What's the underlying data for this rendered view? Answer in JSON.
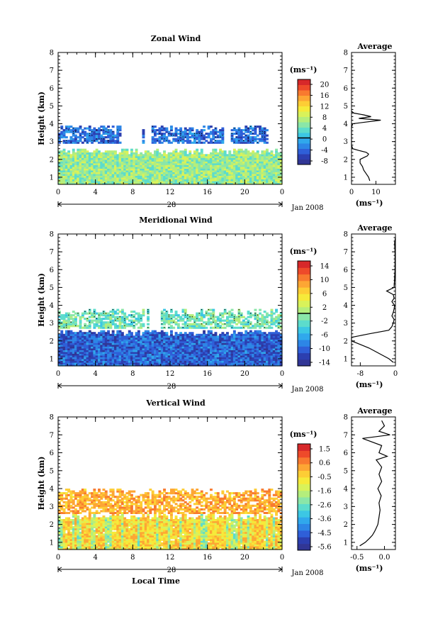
{
  "chart_data": [
    {
      "type": "heatmap",
      "title": "Zonal Wind",
      "xlabel": "",
      "ylabel": "Height (km)",
      "x_ticks": [
        "0",
        "4",
        "8",
        "12",
        "16",
        "20",
        "0"
      ],
      "xlim": [
        0,
        24
      ],
      "y_ticks": [
        "1",
        "2",
        "3",
        "4",
        "5",
        "6",
        "7",
        "8"
      ],
      "ylim": [
        0.6,
        8.0
      ],
      "date_day": "28",
      "date_label": "Jan 2008",
      "colorbar_unit": "(ms⁻¹)",
      "colorbar_ticks": [
        "20",
        "16",
        "12",
        "8",
        "4",
        "0",
        "-4",
        "-8"
      ],
      "colorbar_range": [
        -10,
        22
      ],
      "colorbar_zero_line": 0,
      "upper_layer": {
        "height_km": [
          2.9,
          3.9
        ],
        "time_h": [
          0,
          22.5
        ],
        "typical_value": -4
      },
      "lower_layer": {
        "height_km": [
          0.6,
          2.6
        ],
        "time_h": [
          0,
          24
        ],
        "typical_value": 6
      },
      "profile": {
        "title": "Average",
        "xlabel": "(ms⁻¹)",
        "x_ticks": [
          "0",
          "10"
        ],
        "xlim": [
          0,
          18
        ],
        "height_km": [
          0.8,
          1.0,
          1.2,
          1.4,
          1.6,
          1.8,
          2.0,
          2.1,
          2.2,
          2.3,
          2.4,
          2.5,
          2.6,
          2.8,
          3.0,
          3.2,
          3.4,
          3.6,
          3.8,
          4.0,
          4.2,
          4.3,
          4.4,
          4.5,
          4.6,
          4.7
        ],
        "values": [
          7.5,
          7.0,
          6.0,
          5.0,
          4.5,
          3.5,
          3.5,
          5.0,
          6.5,
          7.0,
          6.0,
          3.0,
          0.5,
          0.0,
          0.0,
          0.0,
          0.0,
          0.0,
          0.0,
          0.5,
          12.0,
          3.0,
          8.0,
          5.0,
          1.0,
          0.0
        ]
      }
    },
    {
      "type": "heatmap",
      "title": "Meridional Wind",
      "xlabel": "",
      "ylabel": "Height (km)",
      "x_ticks": [
        "0",
        "4",
        "8",
        "12",
        "16",
        "20",
        "0"
      ],
      "xlim": [
        0,
        24
      ],
      "y_ticks": [
        "1",
        "2",
        "3",
        "4",
        "5",
        "6",
        "7",
        "8"
      ],
      "ylim": [
        0.6,
        8.0
      ],
      "date_day": "28",
      "date_label": "Jan 2008",
      "colorbar_unit": "(ms⁻¹)",
      "colorbar_ticks": [
        "14",
        "10",
        "6",
        "2",
        "-2",
        "-6",
        "-10",
        "-14"
      ],
      "colorbar_range": [
        -16,
        16
      ],
      "colorbar_zero_line": 0,
      "upper_layer": {
        "height_km": [
          2.7,
          3.8
        ],
        "time_h": [
          0,
          24
        ],
        "typical_value": -2
      },
      "lower_layer": {
        "height_km": [
          0.6,
          2.6
        ],
        "time_h": [
          0,
          24
        ],
        "typical_value": -11
      },
      "profile": {
        "title": "Average",
        "xlabel": "(ms⁻¹)",
        "x_ticks": [
          "-8",
          "0"
        ],
        "xlim": [
          -10,
          0
        ],
        "height_km": [
          0.8,
          1.0,
          1.2,
          1.4,
          1.6,
          1.8,
          2.0,
          2.2,
          2.4,
          2.6,
          2.8,
          3.0,
          3.2,
          3.4,
          3.6,
          3.8,
          4.0,
          4.2,
          4.4,
          4.6,
          4.8,
          5.0,
          5.5,
          6.0,
          6.5,
          7.0,
          7.5,
          7.8
        ],
        "values": [
          -0.5,
          -1.5,
          -3.0,
          -4.5,
          -6.0,
          -8.0,
          -10.0,
          -10.0,
          -6.0,
          -1.5,
          -0.8,
          -0.5,
          -0.3,
          -0.8,
          -0.5,
          -0.3,
          -0.2,
          -0.8,
          -0.3,
          -0.5,
          -2.0,
          -0.3,
          -0.2,
          -0.1,
          -0.1,
          -0.1,
          -0.2,
          0.0
        ]
      }
    },
    {
      "type": "heatmap",
      "title": "Vertical Wind",
      "xlabel": "Local Time",
      "ylabel": "Height (km)",
      "x_ticks": [
        "0",
        "4",
        "8",
        "12",
        "16",
        "20",
        "0"
      ],
      "xlim": [
        0,
        24
      ],
      "y_ticks": [
        "1",
        "2",
        "3",
        "4",
        "5",
        "6",
        "7",
        "8"
      ],
      "ylim": [
        0.6,
        8.0
      ],
      "date_day": "28",
      "date_label": "Jan 2008",
      "colorbar_unit": "(ms⁻¹)",
      "colorbar_ticks": [
        "1.5",
        "0.6",
        "-0.5",
        "-1.6",
        "-2.6",
        "-3.6",
        "-4.5",
        "-5.6"
      ],
      "colorbar_range": [
        -6.2,
        2.1
      ],
      "colorbar_zero_line": null,
      "upper_layer": {
        "height_km": [
          2.6,
          4.0
        ],
        "time_h": [
          0,
          24
        ],
        "typical_value": 0.2
      },
      "lower_layer": {
        "height_km": [
          0.6,
          2.6
        ],
        "time_h": [
          0,
          24
        ],
        "typical_value": -0.4
      },
      "profile": {
        "title": "Average",
        "xlabel": "(ms⁻¹)",
        "x_ticks": [
          "-0.5",
          "0.0"
        ],
        "xlim": [
          -0.6,
          0.2
        ],
        "height_km": [
          0.8,
          1.0,
          1.2,
          1.4,
          1.6,
          1.8,
          2.0,
          2.4,
          2.8,
          3.2,
          3.6,
          4.0,
          4.4,
          4.8,
          5.2,
          5.6,
          5.8,
          6.0,
          6.4,
          6.8,
          7.0,
          7.2,
          7.5,
          7.8
        ],
        "values": [
          -0.45,
          -0.35,
          -0.28,
          -0.22,
          -0.18,
          -0.15,
          -0.12,
          -0.1,
          -0.08,
          -0.1,
          -0.06,
          -0.12,
          -0.05,
          -0.1,
          -0.05,
          -0.15,
          0.05,
          -0.1,
          -0.05,
          -0.4,
          0.1,
          -0.1,
          0.0,
          -0.05
        ]
      }
    }
  ]
}
